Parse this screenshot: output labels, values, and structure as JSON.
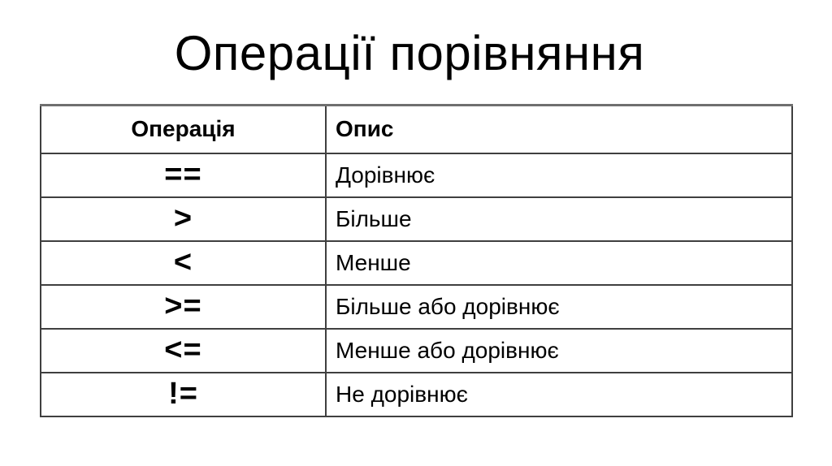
{
  "title": "Операції порівняння",
  "table": {
    "header": {
      "operation": "Операція",
      "description": "Опис"
    },
    "rows": [
      {
        "operation": "==",
        "description": "Дорівнює"
      },
      {
        "operation": ">",
        "description": "Більше"
      },
      {
        "operation": "<",
        "description": "Менше"
      },
      {
        "operation": ">=",
        "description": "Більше або дорівнює"
      },
      {
        "operation": "<=",
        "description": "Менше або дорівнює"
      },
      {
        "operation": "!=",
        "description": "Не дорівнює"
      }
    ]
  },
  "colors": {
    "background": "#ffffff",
    "text": "#000000",
    "border": "#3f3f3f",
    "border_top": "#6f6f6f"
  }
}
